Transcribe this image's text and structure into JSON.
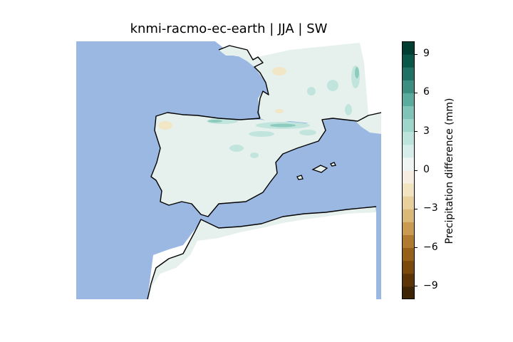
{
  "title": "knmi-racmo-ec-earth | JJA | SW",
  "colors": {
    "ocean": "#9bb8e2",
    "land_neutral": "#e6f1ee",
    "outside_domain": "#ffffff",
    "coastline": "#000000"
  },
  "colorbar": {
    "label": "Precipitation difference (mm)",
    "range": [
      -10,
      10
    ],
    "ticks": [
      {
        "value": 9,
        "label": "9"
      },
      {
        "value": 6,
        "label": "6"
      },
      {
        "value": 3,
        "label": "3"
      },
      {
        "value": 0,
        "label": "0"
      },
      {
        "value": -3,
        "label": "−3"
      },
      {
        "value": -6,
        "label": "−6"
      },
      {
        "value": -9,
        "label": "−9"
      }
    ],
    "colors": [
      "#3c2404",
      "#5b3408",
      "#7a4a0c",
      "#94601a",
      "#b07a2f",
      "#c99a52",
      "#dab878",
      "#e8d09c",
      "#f2e4c0",
      "#f6efe1",
      "#eef5f3",
      "#d6eee9",
      "#bde4dc",
      "#9fd6cc",
      "#7fc4b7",
      "#5bab9e",
      "#3b8e80",
      "#1e7164",
      "#0a5647",
      "#023d32"
    ]
  }
}
